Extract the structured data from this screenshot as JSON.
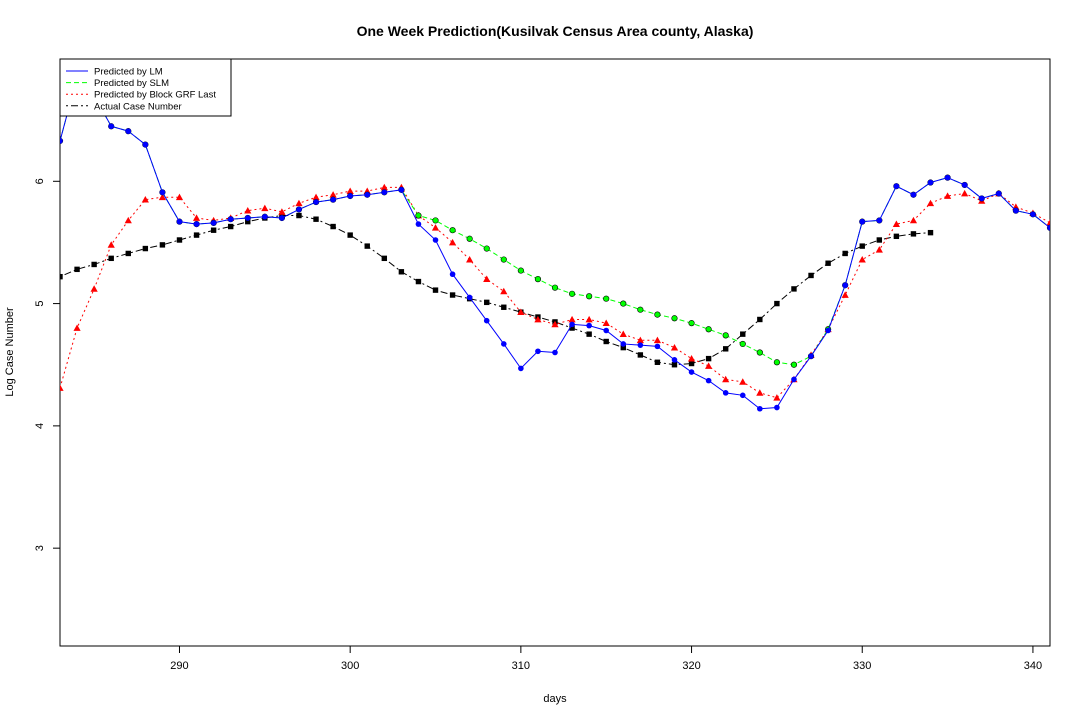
{
  "chart_data": {
    "type": "line",
    "title": "One Week Prediction(Kusilvak Census Area county, Alaska)",
    "xlabel": "days",
    "ylabel": "Log Case Number",
    "xlim": [
      283,
      341
    ],
    "ylim": [
      2.2,
      7.0
    ],
    "x_ticks": [
      290,
      300,
      310,
      320,
      330,
      340
    ],
    "y_ticks": [
      3,
      4,
      5,
      6
    ],
    "grid": false,
    "legend_position": "top-left",
    "series": [
      {
        "name": "Predicted by LM",
        "color": "#0000ff",
        "line": "solid",
        "marker": "circle",
        "x": [
          283,
          284,
          285,
          286,
          287,
          288,
          289,
          290,
          291,
          292,
          293,
          294,
          295,
          296,
          297,
          298,
          299,
          300,
          301,
          302,
          303,
          304,
          305,
          306,
          307,
          308,
          309,
          310,
          311,
          312,
          313,
          314,
          315,
          316,
          317,
          318,
          319,
          320,
          321,
          322,
          323,
          324,
          325,
          326,
          327,
          328,
          329,
          330,
          331,
          332,
          333,
          334,
          335,
          336,
          337,
          338,
          339,
          340,
          341
        ],
        "y": [
          6.33,
          6.85,
          6.7,
          6.45,
          6.41,
          6.3,
          5.91,
          5.67,
          5.65,
          5.66,
          5.69,
          5.7,
          5.71,
          5.7,
          5.77,
          5.83,
          5.85,
          5.88,
          5.89,
          5.91,
          5.93,
          5.65,
          5.52,
          5.24,
          5.05,
          4.86,
          4.67,
          4.47,
          4.61,
          4.6,
          4.83,
          4.82,
          4.78,
          4.67,
          4.66,
          4.65,
          4.54,
          4.44,
          4.37,
          4.27,
          4.25,
          4.14,
          4.15,
          4.38,
          4.57,
          4.78,
          5.15,
          5.67,
          5.68,
          5.96,
          5.89,
          5.99,
          6.03,
          5.97,
          5.86,
          5.9,
          5.76,
          5.73,
          5.62
        ]
      },
      {
        "name": "Predicted by SLM",
        "color": "#00ff00",
        "line": "dashed",
        "marker": "circle",
        "x": [
          283,
          284,
          285,
          286,
          287,
          288,
          289,
          290,
          291,
          292,
          293,
          294,
          295,
          296,
          297,
          298,
          299,
          300,
          301,
          302,
          303,
          304,
          305,
          306,
          307,
          308,
          309,
          310,
          311,
          312,
          313,
          314,
          315,
          316,
          317,
          318,
          319,
          320,
          321,
          322,
          323,
          324,
          325,
          326,
          327,
          328,
          329,
          330,
          331,
          332,
          333,
          334,
          335,
          336,
          337,
          338,
          339,
          340,
          341
        ],
        "y": [
          6.33,
          6.85,
          6.7,
          6.45,
          6.41,
          6.3,
          5.91,
          5.67,
          5.65,
          5.66,
          5.69,
          5.7,
          5.71,
          5.7,
          5.77,
          5.83,
          5.85,
          5.88,
          5.89,
          5.91,
          5.93,
          5.72,
          5.68,
          5.6,
          5.53,
          5.45,
          5.36,
          5.27,
          5.2,
          5.13,
          5.08,
          5.06,
          5.04,
          5.0,
          4.95,
          4.91,
          4.88,
          4.84,
          4.79,
          4.74,
          4.67,
          4.6,
          4.52,
          4.5,
          4.57,
          4.79,
          5.15,
          5.67,
          5.68,
          5.96,
          5.89,
          5.99,
          6.03,
          5.97,
          5.86,
          5.9,
          5.76,
          5.73,
          5.62
        ]
      },
      {
        "name": "Predicted by Block GRF Last",
        "color": "#ff0000",
        "line": "dotted",
        "marker": "triangle",
        "x": [
          283,
          284,
          285,
          286,
          287,
          288,
          289,
          290,
          291,
          292,
          293,
          294,
          295,
          296,
          297,
          298,
          299,
          300,
          301,
          302,
          303,
          304,
          305,
          306,
          307,
          308,
          309,
          310,
          311,
          312,
          313,
          314,
          315,
          316,
          317,
          318,
          319,
          320,
          321,
          322,
          323,
          324,
          325,
          326,
          327,
          328,
          329,
          330,
          331,
          332,
          333,
          334,
          335,
          336,
          337,
          338,
          339,
          340,
          341
        ],
        "y": [
          4.31,
          4.8,
          5.12,
          5.48,
          5.68,
          5.85,
          5.87,
          5.87,
          5.7,
          5.68,
          5.7,
          5.76,
          5.78,
          5.75,
          5.82,
          5.87,
          5.89,
          5.92,
          5.92,
          5.95,
          5.95,
          5.72,
          5.62,
          5.5,
          5.36,
          5.2,
          5.1,
          4.93,
          4.87,
          4.83,
          4.87,
          4.87,
          4.84,
          4.75,
          4.7,
          4.7,
          4.64,
          4.55,
          4.49,
          4.38,
          4.36,
          4.27,
          4.23,
          4.38,
          4.58,
          4.79,
          5.07,
          5.36,
          5.44,
          5.65,
          5.68,
          5.82,
          5.88,
          5.9,
          5.84,
          5.9,
          5.79,
          5.74,
          5.66
        ]
      },
      {
        "name": "Actual Case Number",
        "color": "#000000",
        "line": "dotdash",
        "marker": "square",
        "x": [
          283,
          284,
          285,
          286,
          287,
          288,
          289,
          290,
          291,
          292,
          293,
          294,
          295,
          296,
          297,
          298,
          299,
          300,
          301,
          302,
          303,
          304,
          305,
          306,
          307,
          308,
          309,
          310,
          311,
          312,
          313,
          314,
          315,
          316,
          317,
          318,
          319,
          320,
          321,
          322,
          323,
          324,
          325,
          326,
          327,
          328,
          329,
          330,
          331,
          332,
          333,
          334
        ],
        "y": [
          5.22,
          5.28,
          5.32,
          5.37,
          5.41,
          5.45,
          5.48,
          5.52,
          5.56,
          5.6,
          5.63,
          5.67,
          5.7,
          5.72,
          5.72,
          5.69,
          5.63,
          5.56,
          5.47,
          5.37,
          5.26,
          5.18,
          5.11,
          5.07,
          5.04,
          5.01,
          4.97,
          4.93,
          4.89,
          4.85,
          4.8,
          4.75,
          4.69,
          4.64,
          4.58,
          4.52,
          4.5,
          4.51,
          4.55,
          4.63,
          4.75,
          4.87,
          5.0,
          5.12,
          5.23,
          5.33,
          5.41,
          5.47,
          5.52,
          5.55,
          5.57,
          5.58
        ]
      }
    ]
  }
}
